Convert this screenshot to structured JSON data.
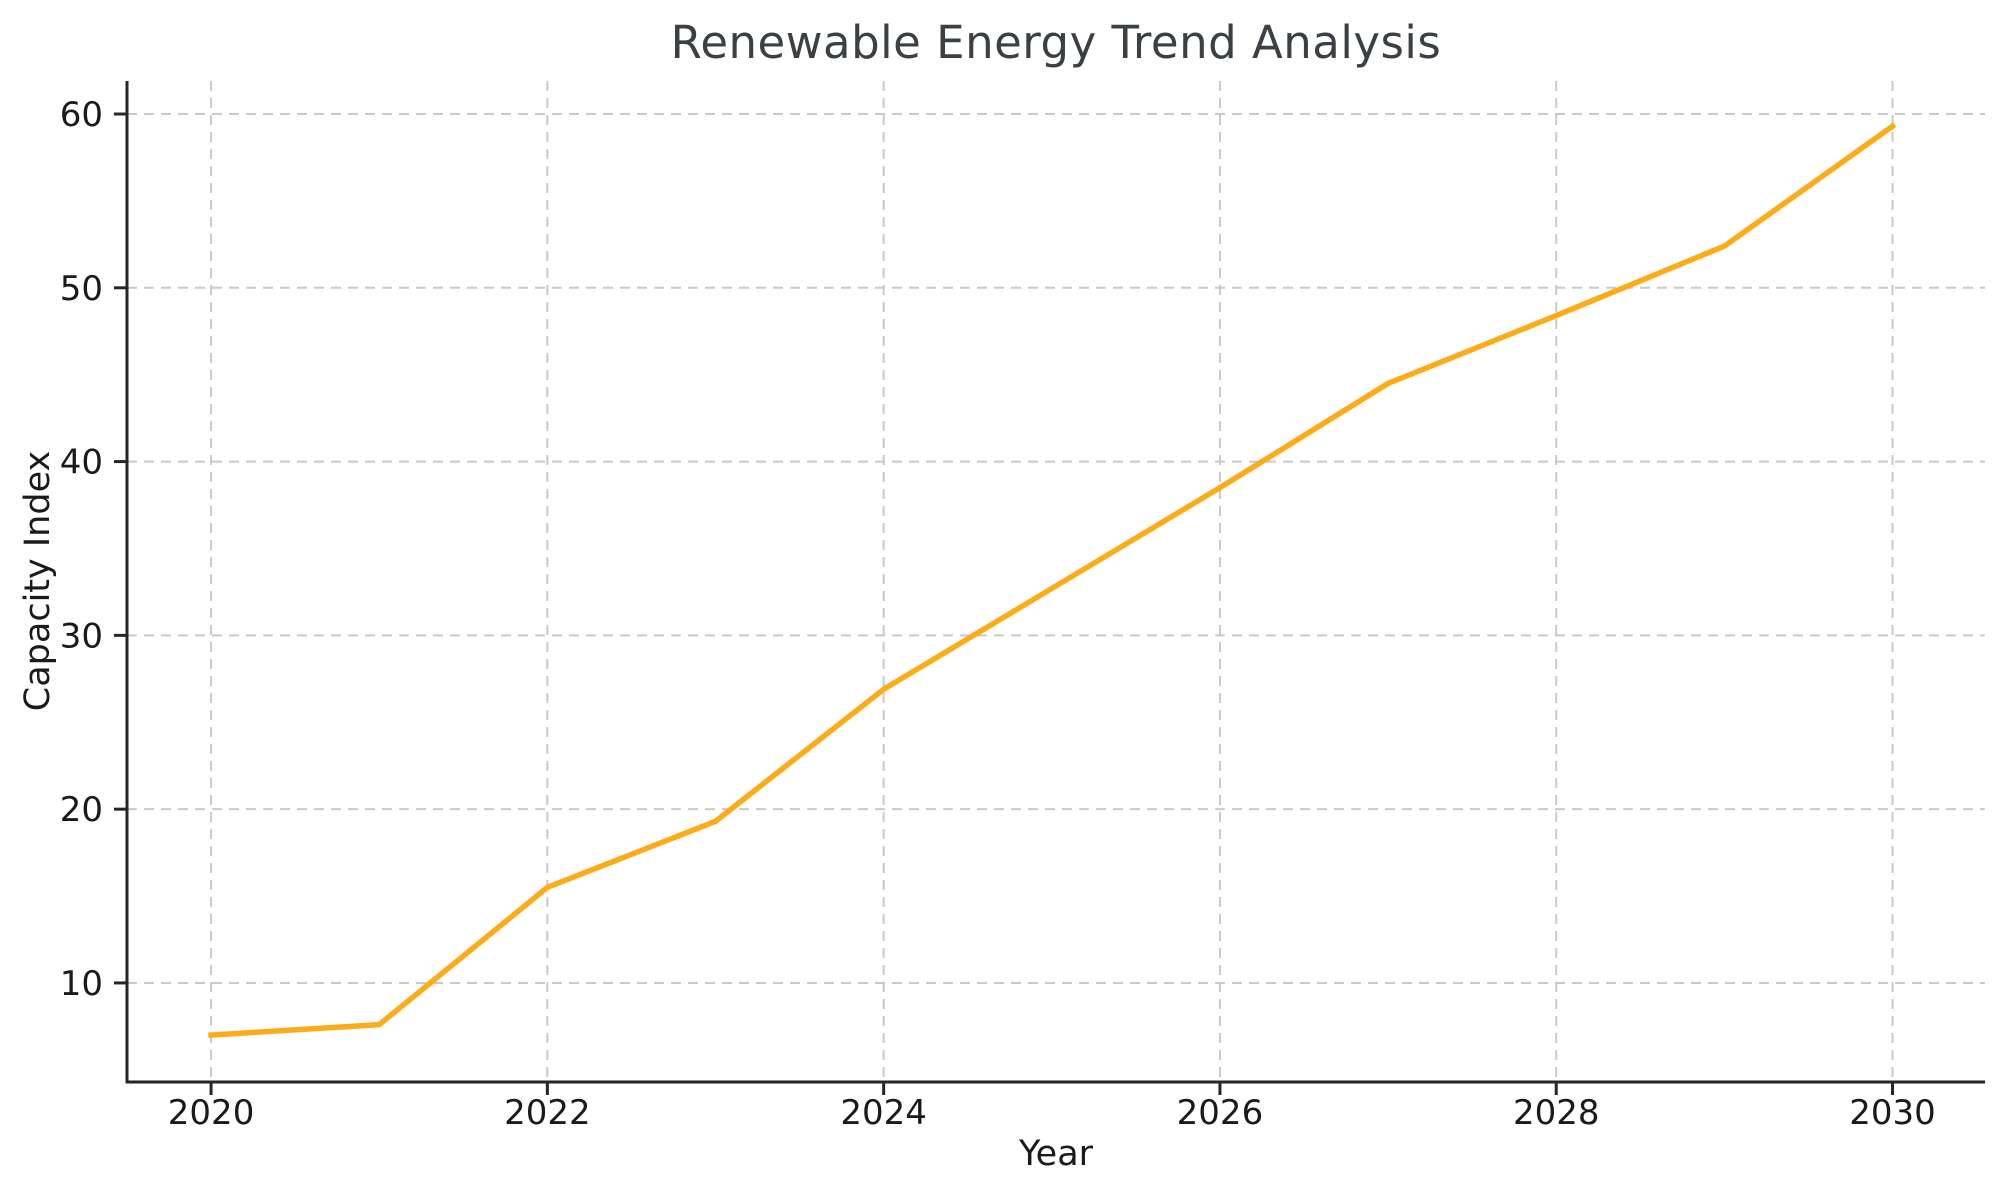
{
  "chart_data": {
    "type": "line",
    "title": "Renewable Energy Trend Analysis",
    "xlabel": "Year",
    "ylabel": "Capacity Index",
    "x": [
      2020,
      2021,
      2022,
      2023,
      2024,
      2025,
      2026,
      2027,
      2028,
      2029,
      2030
    ],
    "series": [
      {
        "name": "Capacity Index",
        "color": "#FBAC18",
        "values": [
          7.0,
          7.6,
          15.5,
          19.3,
          26.9,
          32.7,
          38.5,
          44.5,
          48.4,
          52.4,
          59.3
        ]
      }
    ],
    "xticks": [
      2020,
      2022,
      2024,
      2026,
      2028,
      2030
    ],
    "yticks": [
      10,
      20,
      30,
      40,
      50,
      60
    ],
    "xlim": [
      2019.5,
      2030.55
    ],
    "ylim": [
      4.3,
      61.9
    ],
    "grid": true,
    "grid_style": "dashed",
    "legend": false
  },
  "style": {
    "line_color": "#FBAC18",
    "grid_color": "#c9c9c9",
    "spine_color": "#262626",
    "tick_color": "#262626",
    "tick_label_color": "#1a1a1a",
    "title_color": "#3b4045",
    "background": "#ffffff"
  }
}
